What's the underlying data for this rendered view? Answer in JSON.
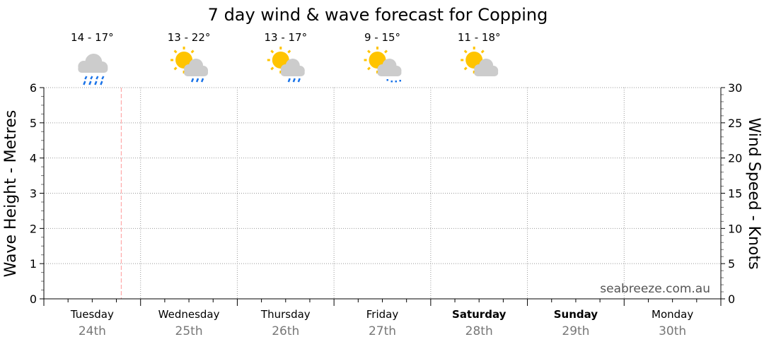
{
  "chart_data": {
    "type": "line",
    "title": "7 day wind & wave forecast for Copping",
    "ylabel": "Wave Height - Metres",
    "y2label": "Wind Speed - Knots",
    "ylim": [
      0,
      6
    ],
    "y2lim": [
      0,
      30
    ],
    "yticks": [
      "0",
      "1",
      "2",
      "3",
      "4",
      "5",
      "6"
    ],
    "y2ticks": [
      "0",
      "5",
      "10",
      "15",
      "20",
      "25",
      "30"
    ],
    "grid": true,
    "days": [
      {
        "name": "Tuesday",
        "date": "24th",
        "bold": false,
        "temp": "14 - 17°",
        "icon": "rain-cloud-icon"
      },
      {
        "name": "Wednesday",
        "date": "25th",
        "bold": false,
        "temp": "13 - 22°",
        "icon": "sun-cloud-rain-icon"
      },
      {
        "name": "Thursday",
        "date": "26th",
        "bold": false,
        "temp": "13 - 17°",
        "icon": "sun-cloud-rain-icon"
      },
      {
        "name": "Friday",
        "date": "27th",
        "bold": false,
        "temp": "9 - 15°",
        "icon": "sun-cloud-drizzle-icon"
      },
      {
        "name": "Saturday",
        "date": "28th",
        "bold": true,
        "temp": "11 - 18°",
        "icon": "sun-cloud-icon"
      },
      {
        "name": "Sunday",
        "date": "29th",
        "bold": true,
        "temp": "",
        "icon": ""
      },
      {
        "name": "Monday",
        "date": "30th",
        "bold": false,
        "temp": "",
        "icon": ""
      }
    ],
    "series": [],
    "watermark": "seabreeze.com.au",
    "colors": {
      "now_line": "#ff9999",
      "rain": "#1a73e8",
      "sun": "#ffc400",
      "cloud": "#cccccc",
      "grid": "#999999"
    }
  }
}
